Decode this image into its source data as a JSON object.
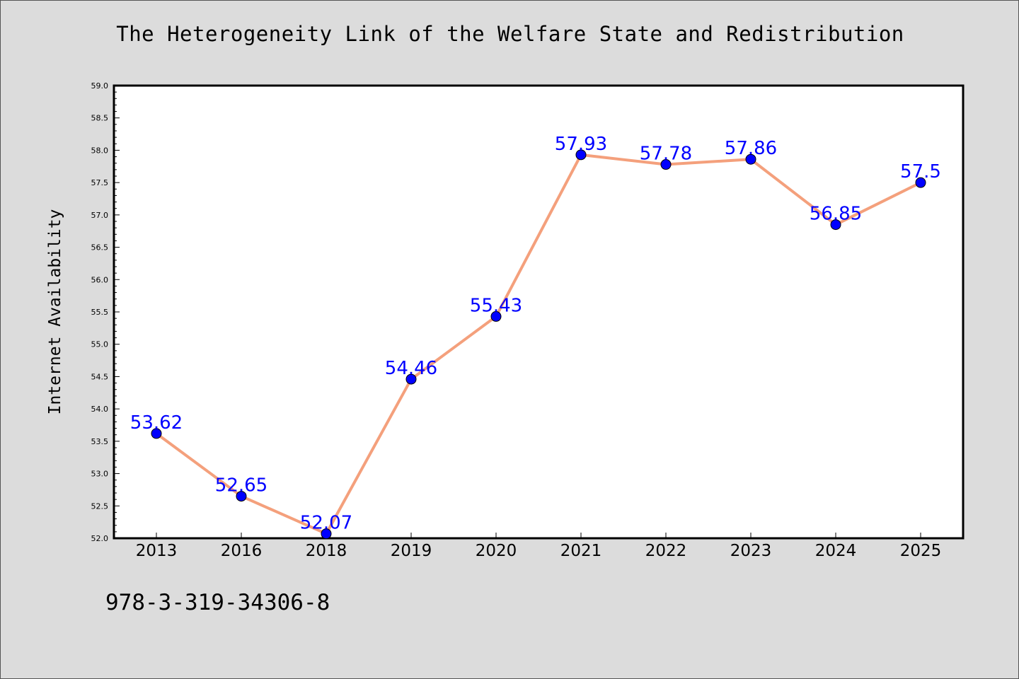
{
  "chart_data": {
    "type": "line",
    "title": "The Heterogeneity Link of the Welfare State and Redistribution",
    "xlabel": "",
    "ylabel": "Internet Availability",
    "categories": [
      "2013",
      "2016",
      "2018",
      "2019",
      "2020",
      "2021",
      "2022",
      "2023",
      "2024",
      "2025"
    ],
    "series": [
      {
        "values": [
          53.62,
          52.65,
          52.07,
          54.46,
          55.43,
          57.93,
          57.78,
          57.86,
          56.85,
          57.5
        ],
        "data_labels": [
          "53.62",
          "52.65",
          "52.07",
          "54.46",
          "55.43",
          "57.93",
          "57.78",
          "57.86",
          "56.85",
          "57.5"
        ]
      }
    ],
    "ylim": [
      52.0,
      59.0
    ],
    "yticks": [
      "52.0",
      "52.5",
      "53.0",
      "53.5",
      "54.0",
      "54.5",
      "55.0",
      "55.5",
      "56.0",
      "56.5",
      "57.0",
      "57.5",
      "58.0",
      "58.5",
      "59.0"
    ],
    "grid": false,
    "line_color": "#f4a07c",
    "marker_color": "#0000ff",
    "label_color": "#0000ff"
  },
  "footer": {
    "isbn": "978-3-319-34306-8"
  }
}
